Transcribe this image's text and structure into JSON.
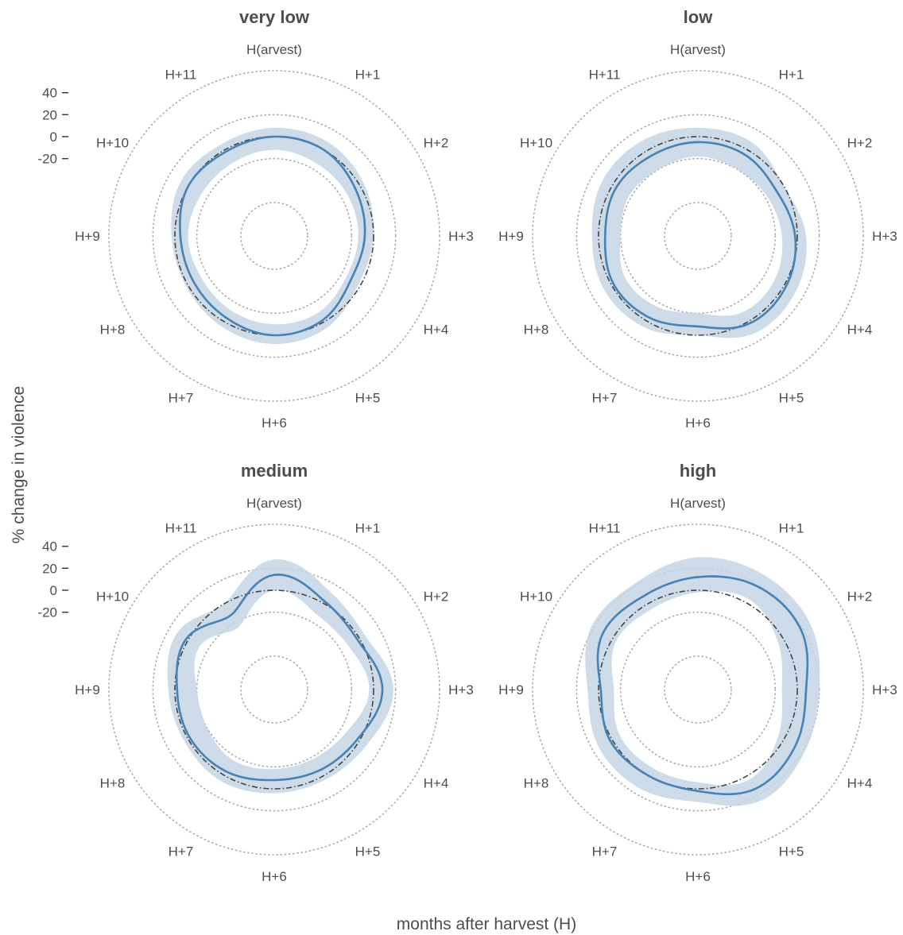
{
  "chart_data": {
    "type": "polar-line",
    "xlabel": "months after harvest (H)",
    "ylabel": "% change in violence",
    "radial_ticks": [
      40,
      20,
      0,
      -20
    ],
    "radial_tick_labels": [
      "40",
      "20",
      "0",
      "-20"
    ],
    "rlim": [
      -80,
      60
    ],
    "months": [
      "H(arvest)",
      "H+1",
      "H+2",
      "H+3",
      "H+4",
      "H+5",
      "H+6",
      "H+7",
      "H+8",
      "H+9",
      "H+10",
      "H+11"
    ],
    "reference_line_value": 0,
    "colors": {
      "line": "#4682b4",
      "band": "#c6d6e5",
      "reference": "#444444",
      "grid": "#aaaaaa"
    },
    "panels": [
      {
        "title": "very low",
        "y": [
          0,
          0,
          -5,
          -8,
          -10,
          -2,
          0,
          -4,
          -6,
          -5,
          0,
          -2
        ],
        "lower": [
          -12,
          -14,
          -14,
          -14,
          -15,
          -10,
          -10,
          -12,
          -14,
          -12,
          -14,
          -14
        ],
        "upper": [
          8,
          8,
          4,
          0,
          -2,
          6,
          8,
          5,
          2,
          3,
          8,
          6
        ]
      },
      {
        "title": "low",
        "y": [
          -5,
          -5,
          -8,
          -2,
          2,
          2,
          -8,
          -4,
          -2,
          -6,
          -4,
          -6
        ],
        "lower": [
          -18,
          -20,
          -18,
          -14,
          -10,
          -10,
          -20,
          -16,
          -14,
          -20,
          -18,
          -20
        ],
        "upper": [
          8,
          8,
          0,
          8,
          12,
          12,
          0,
          6,
          8,
          6,
          10,
          10
        ]
      },
      {
        "title": "medium",
        "y": [
          14,
          2,
          -2,
          8,
          -2,
          -6,
          -8,
          -4,
          -2,
          -2,
          2,
          -12
        ],
        "lower": [
          0,
          -12,
          -12,
          -4,
          -14,
          -18,
          -18,
          -16,
          -20,
          -20,
          -12,
          -25
        ],
        "upper": [
          28,
          12,
          6,
          18,
          8,
          4,
          4,
          6,
          4,
          6,
          12,
          0
        ]
      },
      {
        "title": "high",
        "y": [
          12,
          18,
          18,
          8,
          12,
          14,
          2,
          0,
          2,
          -2,
          10,
          8
        ],
        "lower": [
          -2,
          4,
          -6,
          -14,
          -6,
          4,
          -6,
          -8,
          -8,
          -14,
          -4,
          -6
        ],
        "upper": [
          30,
          30,
          28,
          20,
          22,
          26,
          12,
          14,
          14,
          10,
          22,
          22
        ]
      }
    ]
  }
}
